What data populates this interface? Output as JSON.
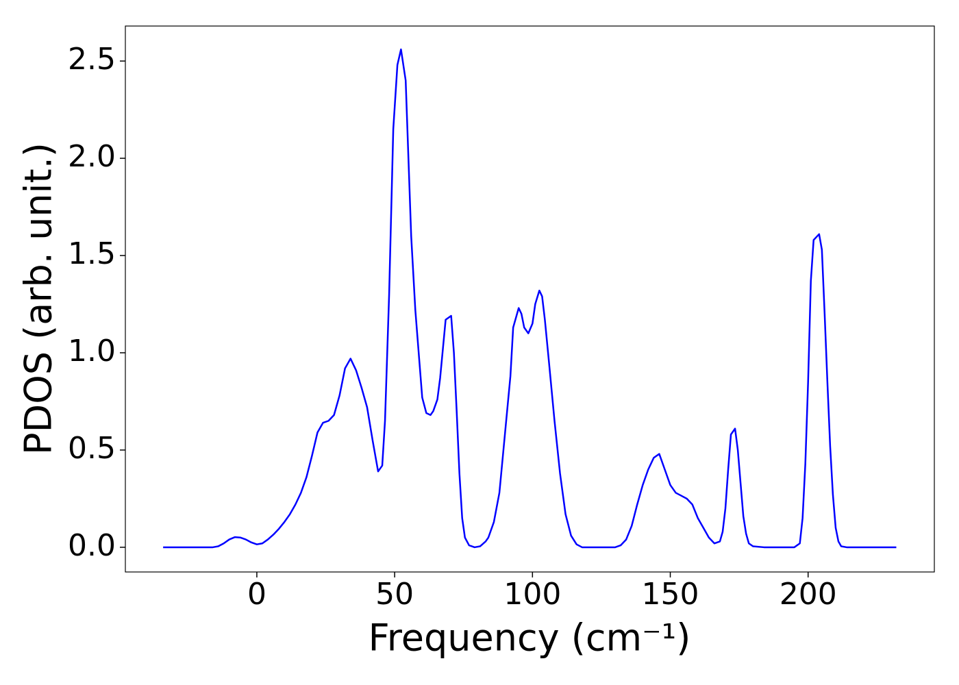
{
  "chart_data": {
    "type": "line",
    "xlabel": "Frequency (cm⁻¹)",
    "ylabel": "PDOS (arb. unit.)",
    "color": "#0000ff",
    "x": [
      -34,
      -30,
      -26,
      -22,
      -18,
      -16,
      -14,
      -12,
      -10,
      -8,
      -6,
      -4,
      -2,
      0,
      2,
      4,
      6,
      8,
      10,
      12,
      14,
      16,
      18,
      20,
      22,
      24,
      26,
      28,
      30,
      32,
      34,
      36,
      38,
      40,
      42,
      44,
      45.5,
      46.5,
      48,
      49.5,
      51,
      52.3,
      54,
      55,
      56,
      57.5,
      59,
      60,
      61.5,
      63,
      64,
      65.5,
      66.5,
      67.5,
      68.5,
      70.5,
      71.5,
      72.5,
      73.5,
      74.5,
      75.5,
      77,
      79,
      81,
      83,
      84,
      86,
      88,
      90,
      92,
      93,
      95,
      96,
      97,
      98.5,
      100,
      101,
      102.5,
      103.5,
      104.5,
      106,
      108,
      110,
      112,
      114,
      116,
      118,
      122,
      126,
      130,
      132,
      134,
      136,
      138,
      140,
      142,
      144,
      146,
      148,
      150,
      152,
      154,
      156,
      158,
      160,
      162,
      164,
      166,
      168,
      169,
      170,
      171,
      172,
      173.5,
      174.5,
      175.5,
      176.5,
      177.5,
      178.5,
      180,
      184,
      188,
      192,
      195,
      197,
      198,
      199,
      200,
      201,
      202,
      204,
      205,
      206,
      207,
      208,
      209,
      210,
      211,
      212,
      214,
      218,
      224,
      232
    ],
    "values": [
      0,
      0,
      0,
      0,
      0,
      0,
      0.005,
      0.02,
      0.04,
      0.052,
      0.05,
      0.04,
      0.025,
      0.015,
      0.02,
      0.04,
      0.065,
      0.095,
      0.13,
      0.17,
      0.22,
      0.28,
      0.36,
      0.47,
      0.59,
      0.64,
      0.65,
      0.68,
      0.78,
      0.92,
      0.97,
      0.91,
      0.82,
      0.72,
      0.55,
      0.39,
      0.42,
      0.65,
      1.3,
      2.15,
      2.48,
      2.56,
      2.4,
      2.0,
      1.6,
      1.22,
      0.95,
      0.77,
      0.69,
      0.68,
      0.7,
      0.76,
      0.87,
      1.02,
      1.17,
      1.19,
      1.0,
      0.7,
      0.38,
      0.15,
      0.05,
      0.01,
      0,
      0.005,
      0.03,
      0.05,
      0.13,
      0.28,
      0.58,
      0.88,
      1.13,
      1.23,
      1.2,
      1.13,
      1.1,
      1.15,
      1.25,
      1.32,
      1.29,
      1.17,
      0.95,
      0.65,
      0.38,
      0.17,
      0.06,
      0.015,
      0,
      0,
      0,
      0,
      0.01,
      0.04,
      0.11,
      0.22,
      0.32,
      0.4,
      0.46,
      0.48,
      0.4,
      0.32,
      0.28,
      0.265,
      0.25,
      0.22,
      0.15,
      0.1,
      0.05,
      0.02,
      0.03,
      0.08,
      0.2,
      0.4,
      0.58,
      0.61,
      0.5,
      0.33,
      0.16,
      0.07,
      0.02,
      0.005,
      0,
      0,
      0,
      0,
      0.02,
      0.15,
      0.43,
      0.85,
      1.37,
      1.58,
      1.61,
      1.53,
      1.2,
      0.85,
      0.52,
      0.27,
      0.1,
      0.03,
      0.005,
      0,
      0,
      0,
      0
    ],
    "xlim": [
      -47.7,
      245.8
    ],
    "ylim": [
      -0.127,
      2.68
    ],
    "xticks": [
      0,
      50,
      100,
      150,
      200
    ],
    "yticks": [
      {
        "value": 0,
        "label": "0.0"
      },
      0.5,
      {
        "value": 1,
        "label": "1.0"
      },
      1.5,
      {
        "value": 2,
        "label": "2.0"
      },
      2.5
    ]
  }
}
